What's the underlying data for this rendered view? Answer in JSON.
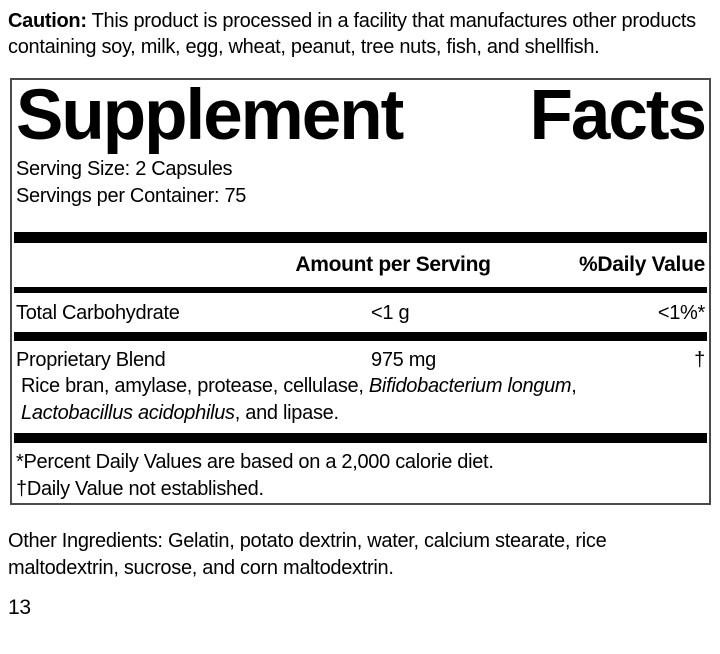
{
  "caution": {
    "label": "Caution:",
    "text": " This product is processed in a facility that manufactures other products containing soy, milk, egg, wheat, peanut, tree nuts, fish, and shellfish."
  },
  "panel": {
    "title_word1": "Supplement",
    "title_word2": "Facts",
    "serving_size": "Serving Size: 2 Capsules",
    "servings_per_container": "Servings per Container: 75",
    "columns": {
      "amount": "Amount per Serving",
      "daily_value": "%Daily Value"
    },
    "rows": [
      {
        "name": "Total Carbohydrate",
        "amount": "<1 g",
        "dv": "<1%*"
      },
      {
        "name": "Proprietary Blend",
        "amount": "975 mg",
        "dv": "†"
      }
    ],
    "blend_description_segments": [
      {
        "text": "Rice bran, amylase, protease, cellulase, ",
        "italic": false
      },
      {
        "text": "Bifidobacterium longum",
        "italic": true
      },
      {
        "text": ", ",
        "italic": false
      },
      {
        "text": "Lactobacillus acidophilus",
        "italic": true
      },
      {
        "text": ", and lipase.",
        "italic": false
      }
    ],
    "footnotes": [
      "*Percent Daily Values are based on a 2,000 calorie diet.",
      "†Daily Value not established."
    ]
  },
  "other_ingredients": "Other Ingredients: Gelatin, potato dextrin, water, calcium stearate, rice maltodextrin, sucrose, and corn maltodextrin.",
  "page_number": "13",
  "colors": {
    "text": "#000000",
    "rule_bars": "#000000",
    "panel_border": "#4a4a4a",
    "background": "#ffffff"
  }
}
